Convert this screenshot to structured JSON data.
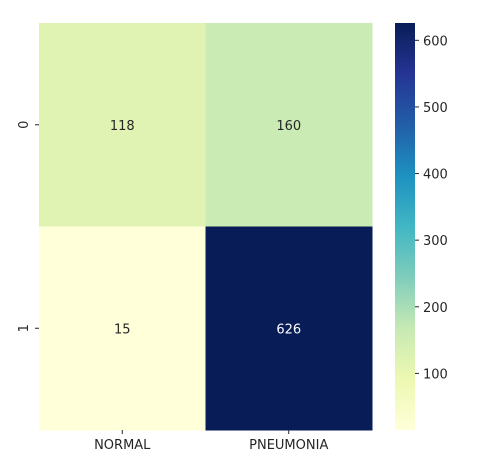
{
  "chart_data": {
    "type": "heatmap",
    "title": "",
    "xlabel": "",
    "ylabel": "",
    "x_categories": [
      "NORMAL",
      "PNEUMONIA"
    ],
    "y_categories": [
      "0",
      "1"
    ],
    "values": [
      [
        118,
        160
      ],
      [
        15,
        626
      ]
    ],
    "cell_labels": [
      [
        "118",
        "160"
      ],
      [
        "15",
        "626"
      ]
    ],
    "colormap": "YlGnBu",
    "colorbar": {
      "range": [
        15,
        626
      ],
      "ticks": [
        100,
        200,
        300,
        400,
        500,
        600
      ],
      "tick_labels": [
        "100",
        "200",
        "300",
        "400",
        "500",
        "600"
      ]
    },
    "annotation_colors": {
      "light_cell": "#262626",
      "dark_cell": "#ffffff"
    }
  }
}
